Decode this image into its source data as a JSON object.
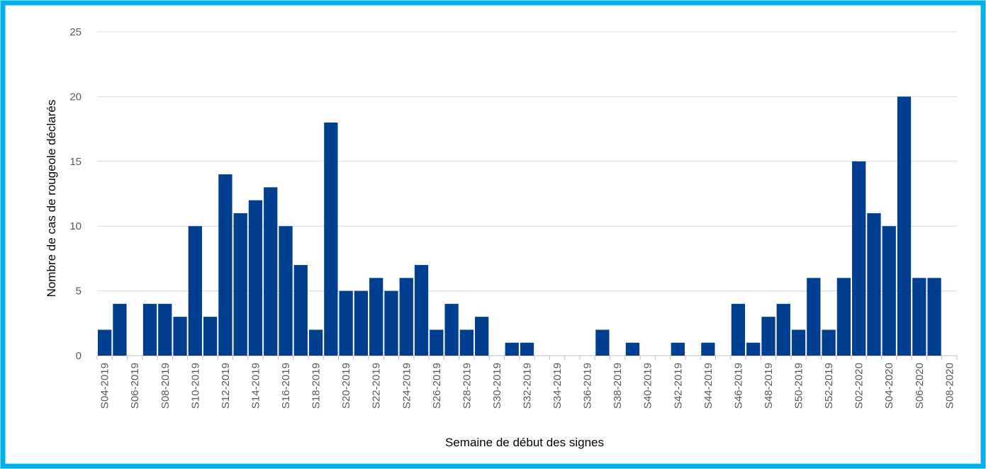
{
  "chart_data": {
    "type": "bar",
    "x_label": "Semaine de début des signes",
    "y_label": "Nombre de cas de rougeole déclarés",
    "categories": [
      "S04-2019",
      null,
      "S06-2019",
      null,
      "S08-2019",
      null,
      "S10-2019",
      null,
      "S12-2019",
      null,
      "S14-2019",
      null,
      "S16-2019",
      null,
      "S18-2019",
      null,
      "S20-2019",
      null,
      "S22-2019",
      null,
      "S24-2019",
      null,
      "S26-2019",
      null,
      "S28-2019",
      null,
      "S30-2019",
      null,
      "S32-2019",
      null,
      "S34-2019",
      null,
      "S36-2019",
      null,
      "S38-2019",
      null,
      "S40-2019",
      null,
      "S42-2019",
      null,
      "S44-2019",
      null,
      "S46-2019",
      null,
      "S48-2019",
      null,
      "S50-2019",
      null,
      "S52-2019",
      null,
      "S02-2020",
      null,
      "S04-2020",
      null,
      "S06-2020",
      null,
      "S08-2020"
    ],
    "values": [
      2,
      4,
      0,
      4,
      4,
      3,
      10,
      3,
      14,
      11,
      12,
      13,
      10,
      7,
      2,
      18,
      5,
      5,
      6,
      5,
      6,
      7,
      2,
      4,
      2,
      3,
      0,
      1,
      1,
      0,
      0,
      0,
      0,
      2,
      0,
      1,
      0,
      0,
      1,
      0,
      1,
      0,
      4,
      1,
      3,
      4,
      2,
      6,
      2,
      6,
      15,
      11,
      10,
      20,
      6,
      6,
      0
    ],
    "color": "#003f8f",
    "ylim": [
      0,
      25
    ],
    "yticks": [
      0,
      5,
      10,
      15,
      20,
      25
    ],
    "grid": true
  }
}
